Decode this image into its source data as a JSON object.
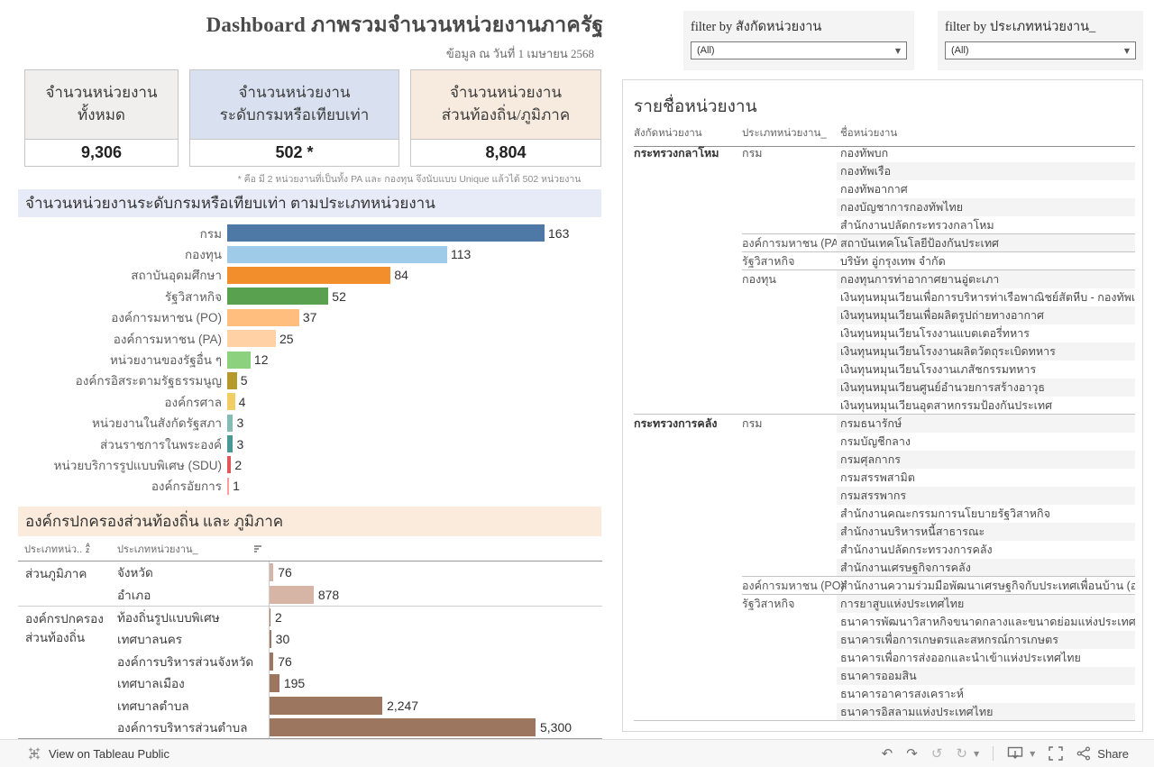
{
  "header": {
    "title": "Dashboard  ภาพรวมจำนวนหน่วยงานภาครัฐ",
    "subtitle": "ข้อมูล ณ วันที่ 1 เมษายน 2568"
  },
  "kpis": [
    {
      "label": "จำนวนหน่วยงาน\nทั้งหมด",
      "value": "9,306",
      "label_bg": "#f0efed"
    },
    {
      "label": "จำนวนหน่วยงาน\nระดับกรมหรือเทียบเท่า",
      "value": "502 *",
      "label_bg": "#d9e1f1"
    },
    {
      "label": "จำนวนหน่วยงาน\nส่วนท้องถิ่น/ภูมิภาค",
      "value": "8,804",
      "label_bg": "#f7ebdf"
    }
  ],
  "footnote": "* คือ มี 2 หน่วยงานที่เป็นทั้ง PA และ กองทุน จึงนับแบบ Unique แล้วได้ 502 หน่วยงาน",
  "chart_data": [
    {
      "type": "bar",
      "orientation": "horizontal",
      "title": "จำนวนหน่วยงานระดับกรมหรือเทียบเท่า ตามประเภทหน่วยงาน",
      "categories": [
        "กรม",
        "กองทุน",
        "สถาบันอุดมศึกษา",
        "รัฐวิสาหกิจ",
        "องค์การมหาชน (PO)",
        "องค์การมหาชน (PA)",
        "หน่วยงานของรัฐอื่น ๆ",
        "องค์กรอิสระตามรัฐธรรมนูญ",
        "องค์กรศาล",
        "หน่วยงานในสังกัดรัฐสภา",
        "ส่วนราชการในพระองค์",
        "หน่วยบริการรูปแบบพิเศษ (SDU)",
        "องค์กรอัยการ"
      ],
      "values": [
        163,
        113,
        84,
        52,
        37,
        25,
        12,
        5,
        4,
        3,
        3,
        2,
        1
      ],
      "value_labels": [
        "163",
        "113",
        "84",
        "52",
        "37",
        "25",
        "12",
        "5",
        "4",
        "3",
        "3",
        "2",
        "1"
      ],
      "colors": [
        "#4E79A7",
        "#A0CBE8",
        "#F28E2B",
        "#59A14F",
        "#FFBE7D",
        "#FFD1A4",
        "#8CD17D",
        "#B6992D",
        "#F1CE63",
        "#86BCB6",
        "#499894",
        "#E15759",
        "#FF9D9A"
      ],
      "xlim": [
        0,
        170
      ],
      "grid": false,
      "legend": "none"
    },
    {
      "type": "bar",
      "orientation": "horizontal",
      "title": "องค์กรปกครองส่วนท้องถิ่น และ ภูมิภาค",
      "column_headers": [
        "ประเภทหน่ว..",
        "ประเภทหน่วยงาน_"
      ],
      "groups": [
        {
          "group": "ส่วนภูมิภาค",
          "color": "#D7B5A6",
          "rows": [
            {
              "label": "จังหวัด",
              "value": 76,
              "display": "76"
            },
            {
              "label": "อำเภอ",
              "value": 878,
              "display": "878"
            }
          ]
        },
        {
          "group": "องค์กรปกครองส่วนท้องถิ่น",
          "color": "#9D7660",
          "rows": [
            {
              "label": "ท้องถิ่นรูปแบบพิเศษ",
              "value": 2,
              "display": "2"
            },
            {
              "label": "เทศบาลนคร",
              "value": 30,
              "display": "30"
            },
            {
              "label": "องค์การบริหารส่วนจังหวัด",
              "value": 76,
              "display": "76"
            },
            {
              "label": "เทศบาลเมือง",
              "value": 195,
              "display": "195"
            },
            {
              "label": "เทศบาลตำบล",
              "value": 2247,
              "display": "2,247"
            },
            {
              "label": "องค์การบริหารส่วนตำบล",
              "value": 5300,
              "display": "5,300"
            }
          ]
        }
      ],
      "xlim": [
        0,
        5500
      ],
      "grid": false,
      "legend": "none"
    }
  ],
  "filters": [
    {
      "label": "filter by สังกัดหน่วยงาน",
      "value": "(All)"
    },
    {
      "label": "filter by ประเภทหน่วยงาน_",
      "value": "(All)"
    }
  ],
  "agency_list": {
    "title": "รายชื่อหน่วยงาน",
    "columns": [
      "สังกัดหน่วยงาน",
      "ประเภทหน่วยงาน_",
      "ชื่อหน่วยงาน"
    ],
    "groups": [
      {
        "ministry": "กระทรวงกลาโหม",
        "types": [
          {
            "type": "กรม",
            "agencies": [
              "กองทัพบก",
              "กองทัพเรือ",
              "กองทัพอากาศ",
              "กองบัญชาการกองทัพไทย",
              "สำนักงานปลัดกระทรวงกลาโหม"
            ]
          },
          {
            "type": "องค์การมหาชน (PA)",
            "agencies": [
              "สถาบันเทคโนโลยีป้องกันประเทศ"
            ]
          },
          {
            "type": "รัฐวิสาหกิจ",
            "agencies": [
              "บริษัท อู่กรุงเทพ จำกัด"
            ]
          },
          {
            "type": "กองทุน",
            "agencies": [
              "กองทุนการท่าอากาศยานอู่ตะเภา",
              "เงินทุนหมุนเวียนเพื่อการบริหารท่าเรือพาณิชย์สัตหีบ - กองทัพเรือ",
              "เงินทุนหมุนเวียนเพื่อผลิตรูปถ่ายทางอากาศ",
              "เงินทุนหมุนเวียนโรงงานแบตเตอรี่ทหาร",
              "เงินทุนหมุนเวียนโรงงานผลิตวัตถุระเบิดทหาร",
              "เงินทุนหมุนเวียนโรงงานเภสัชกรรมทหาร",
              "เงินทุนหมุนเวียนศูนย์อำนวยการสร้างอาวุธ",
              "เงินทุนหมุนเวียนอุตสาหกรรมป้องกันประเทศ"
            ]
          }
        ]
      },
      {
        "ministry": "กระทรวงการคลัง",
        "types": [
          {
            "type": "กรม",
            "agencies": [
              "กรมธนารักษ์",
              "กรมบัญชีกลาง",
              "กรมศุลกากร",
              "กรมสรรพสามิต",
              "กรมสรรพากร",
              "สำนักงานคณะกรรมการนโยบายรัฐวิสาหกิจ",
              "สำนักงานบริหารหนี้สาธารณะ",
              "สำนักงานปลัดกระทรวงการคลัง",
              "สำนักงานเศรษฐกิจการคลัง"
            ]
          },
          {
            "type": "องค์การมหาชน (PO)",
            "agencies": [
              "สำนักงานความร่วมมือพัฒนาเศรษฐกิจกับประเทศเพื่อนบ้าน (องค์"
            ]
          },
          {
            "type": "รัฐวิสาหกิจ",
            "agencies": [
              "การยาสูบแห่งประเทศไทย",
              "ธนาคารพัฒนาวิสาหกิจขนาดกลางและขนาดย่อมแห่งประเทศไทย",
              "ธนาคารเพื่อการเกษตรและสหกรณ์การเกษตร",
              "ธนาคารเพื่อการส่งออกและนำเข้าแห่งประเทศไทย",
              "ธนาคารออมสิน",
              "ธนาคารอาคารสงเคราะห์",
              "ธนาคารอิสลามแห่งประเทศไทย"
            ]
          }
        ]
      }
    ]
  },
  "toolbar": {
    "view_label": "View on Tableau Public",
    "share_label": "Share",
    "icons": [
      "undo",
      "redo",
      "revert",
      "refresh",
      "download",
      "fullscreen",
      "share"
    ]
  },
  "colors": {
    "section1_bg": "#e7ebf7",
    "section2_bg": "#faebdc",
    "stripe": "#f4f4f4",
    "toolbar_bg": "#f7f7f7"
  }
}
